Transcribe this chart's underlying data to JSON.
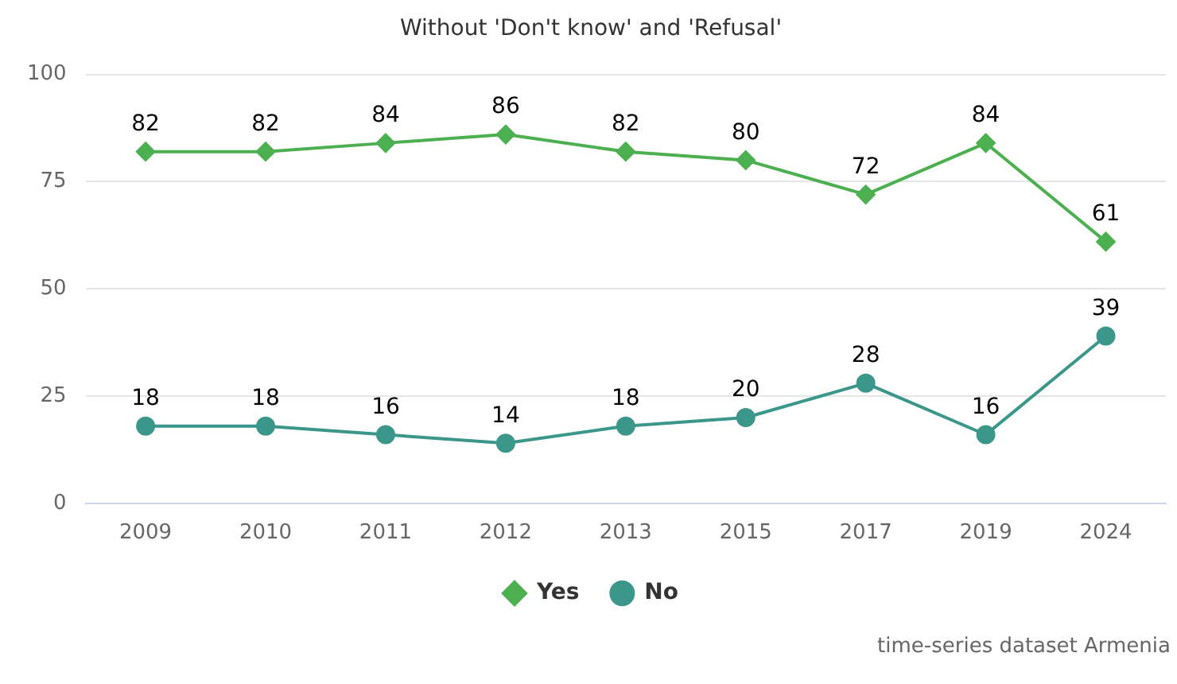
{
  "chart_data": {
    "type": "line",
    "title": "Without 'Don't know' and 'Refusal'",
    "categories": [
      "2009",
      "2010",
      "2011",
      "2012",
      "2013",
      "2015",
      "2017",
      "2019",
      "2024"
    ],
    "series": [
      {
        "name": "Yes",
        "color": "#4caf50",
        "marker": "diamond",
        "values": [
          82,
          82,
          84,
          86,
          82,
          80,
          72,
          84,
          61
        ]
      },
      {
        "name": "No",
        "color": "#3a978a",
        "marker": "circle",
        "values": [
          18,
          18,
          16,
          14,
          18,
          20,
          28,
          16,
          39
        ]
      }
    ],
    "ylim": [
      0,
      100
    ],
    "yticks": [
      0,
      25,
      50,
      75,
      100
    ],
    "grid": "y",
    "legend": "bottom",
    "data_labels": true,
    "line_style": "solid",
    "annotations": [
      "time-series dataset Armenia"
    ]
  }
}
